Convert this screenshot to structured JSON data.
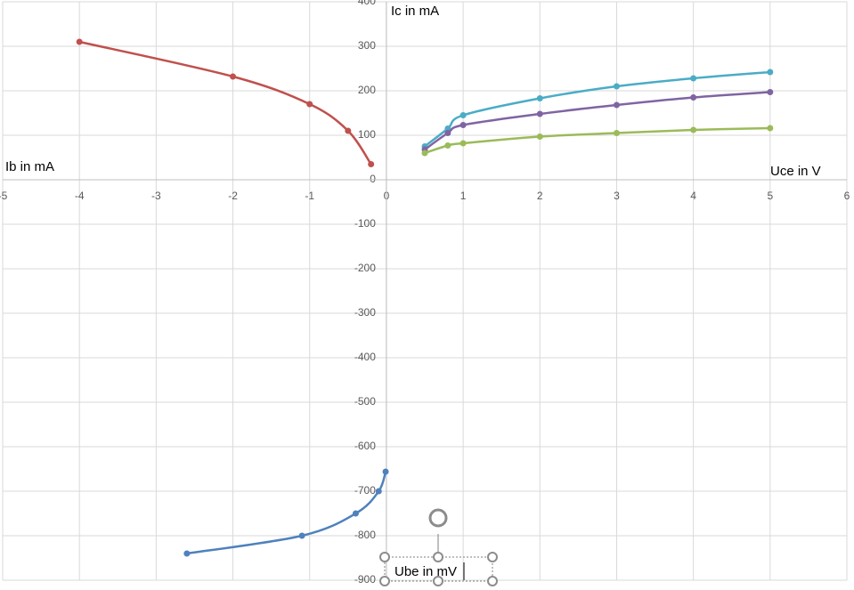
{
  "chart_data": {
    "type": "line",
    "annotations": [
      "Ic in mA",
      "Uce in V",
      "Ib in mA",
      "Ube in mV"
    ],
    "xlim": [
      -5,
      6
    ],
    "xticks": [
      -5,
      -4,
      -3,
      -2,
      -1,
      0,
      1,
      2,
      3,
      4,
      5,
      6
    ],
    "ylim": [
      -900,
      400
    ],
    "yticks": [
      -900,
      -800,
      -700,
      -600,
      -500,
      -400,
      -300,
      -200,
      -100,
      0,
      100,
      200,
      300,
      400
    ],
    "grid": true,
    "series": [
      {
        "color": "#c0504d",
        "x": [
          -4,
          -2,
          -1,
          -0.5,
          -0.2
        ],
        "values": [
          310,
          232,
          170,
          110,
          35
        ]
      },
      {
        "color": "#4f81bd",
        "x": [
          -2.6,
          -1.1,
          -0.4,
          -0.1,
          -0.01
        ],
        "values": [
          -840,
          -800,
          -750,
          -700,
          -656
        ]
      },
      {
        "color": "#4bacc6",
        "x": [
          0.5,
          0.8,
          1,
          2,
          3,
          4,
          5
        ],
        "values": [
          75,
          115,
          145,
          183,
          210,
          228,
          242
        ]
      },
      {
        "color": "#8064a2",
        "x": [
          0.5,
          0.8,
          1,
          2,
          3,
          4,
          5
        ],
        "values": [
          68,
          105,
          123,
          148,
          168,
          185,
          197
        ]
      },
      {
        "color": "#9bbb59",
        "x": [
          0.5,
          0.8,
          1,
          2,
          3,
          4,
          5
        ],
        "values": [
          60,
          77,
          82,
          97,
          105,
          112,
          116
        ]
      }
    ]
  }
}
